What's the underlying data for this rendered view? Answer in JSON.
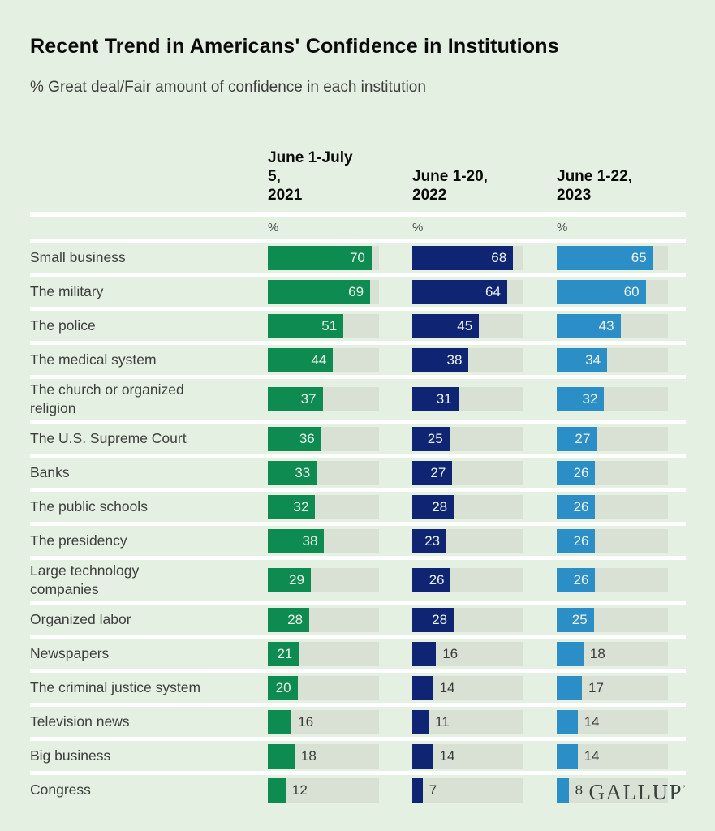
{
  "page": {
    "background": "#E4F0E1"
  },
  "footer": {
    "logo": "GALLUP",
    "logo_mark": "’"
  },
  "chart_data": {
    "type": "bar",
    "orientation": "horizontal",
    "title": "Recent Trend in Americans' Confidence in Institutions",
    "subtitle": "% Great deal/Fair amount of confidence in each institution",
    "value_axis_max": 75,
    "grid": false,
    "legend_position": "column-headers",
    "label_inside_threshold": 20,
    "track_color": "#D8E1D4",
    "columns": [
      {
        "name": "June 1-July 5, 2021",
        "label": "June 1-July\n5,\n2021",
        "unit": "%",
        "color": "#0D8B50"
      },
      {
        "name": "June 1-20, 2022",
        "label": "June 1-20,\n2022",
        "unit": "%",
        "color": "#0F2472"
      },
      {
        "name": "June 1-22, 2023",
        "label": "June 1-22,\n2023",
        "unit": "%",
        "color": "#2C8EC6"
      }
    ],
    "categories": [
      "Small business",
      "The military",
      "The police",
      "The medical system",
      "The church or organized religion",
      "The U.S. Supreme Court",
      "Banks",
      "The public schools",
      "The presidency",
      "Large technology companies",
      "Organized labor",
      "Newspapers",
      "The criminal justice system",
      "Television news",
      "Big business",
      "Congress"
    ],
    "category_labels": [
      "Small business",
      "The military",
      "The police",
      "The medical system",
      "The church or organized\nreligion",
      "The U.S. Supreme Court",
      "Banks",
      "The public schools",
      "The presidency",
      "Large technology\ncompanies",
      "Organized labor",
      "Newspapers",
      "The criminal justice system",
      "Television news",
      "Big business",
      "Congress"
    ],
    "series": [
      {
        "name": "June 1-July 5, 2021",
        "color": "#0D8B50",
        "values": [
          70,
          69,
          51,
          44,
          37,
          36,
          33,
          32,
          38,
          29,
          28,
          21,
          20,
          16,
          18,
          12
        ]
      },
      {
        "name": "June 1-20, 2022",
        "color": "#0F2472",
        "values": [
          68,
          64,
          45,
          38,
          31,
          25,
          27,
          28,
          23,
          26,
          28,
          16,
          14,
          11,
          14,
          7
        ]
      },
      {
        "name": "June 1-22, 2023",
        "color": "#2C8EC6",
        "values": [
          65,
          60,
          43,
          34,
          32,
          27,
          26,
          26,
          26,
          26,
          25,
          18,
          17,
          14,
          14,
          8
        ]
      }
    ]
  }
}
